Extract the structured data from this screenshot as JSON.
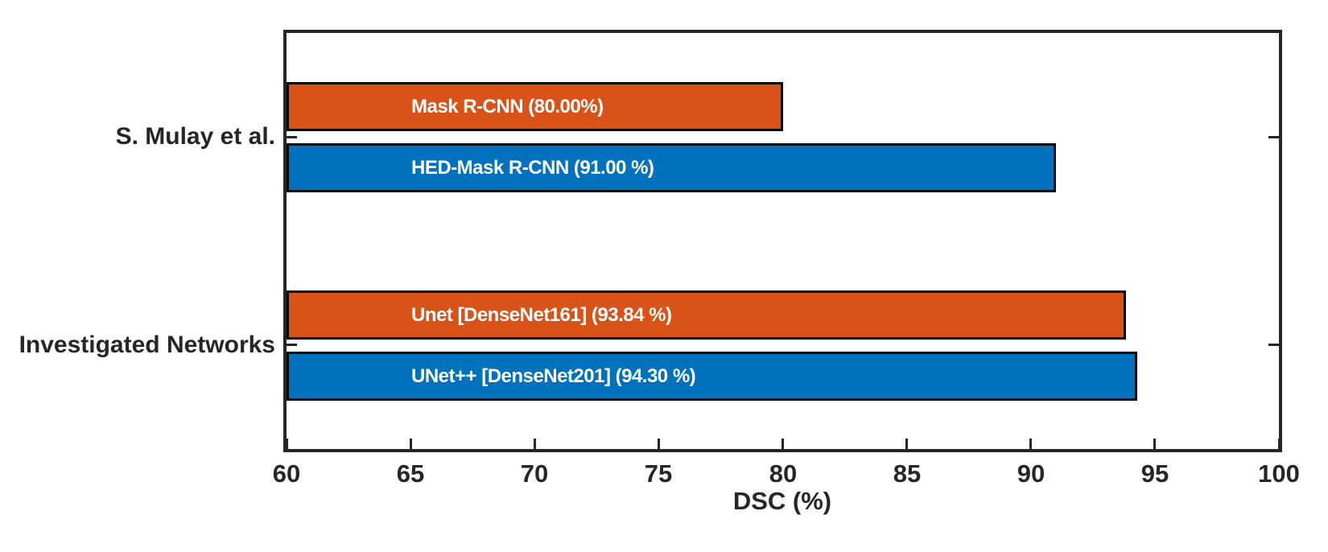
{
  "chart_data": {
    "type": "bar",
    "orientation": "horizontal",
    "xlabel": "DSC (%)",
    "xlim": [
      60,
      100
    ],
    "xticks": [
      60,
      65,
      70,
      75,
      80,
      85,
      90,
      95,
      100
    ],
    "categories": [
      "S. Mulay et al.",
      "Investigated Networks"
    ],
    "grid": false,
    "legend": "none",
    "colors": {
      "orange": "#D95319",
      "blue": "#0072BD",
      "axis": "#262626",
      "bar_label_text": "#FFFFFF"
    },
    "groups": [
      {
        "category": "S. Mulay et al.",
        "bars": [
          {
            "label": "Mask R-CNN (80.00%)",
            "value": 80.0,
            "color": "#D95319"
          },
          {
            "label": "HED-Mask R-CNN (91.00 %)",
            "value": 91.0,
            "color": "#0072BD"
          }
        ]
      },
      {
        "category": "Investigated Networks",
        "bars": [
          {
            "label": "Unet [DenseNet161] (93.84 %)",
            "value": 93.84,
            "color": "#D95319"
          },
          {
            "label": "UNet++ [DenseNet201] (94.30 %)",
            "value": 94.3,
            "color": "#0072BD"
          }
        ]
      }
    ]
  }
}
